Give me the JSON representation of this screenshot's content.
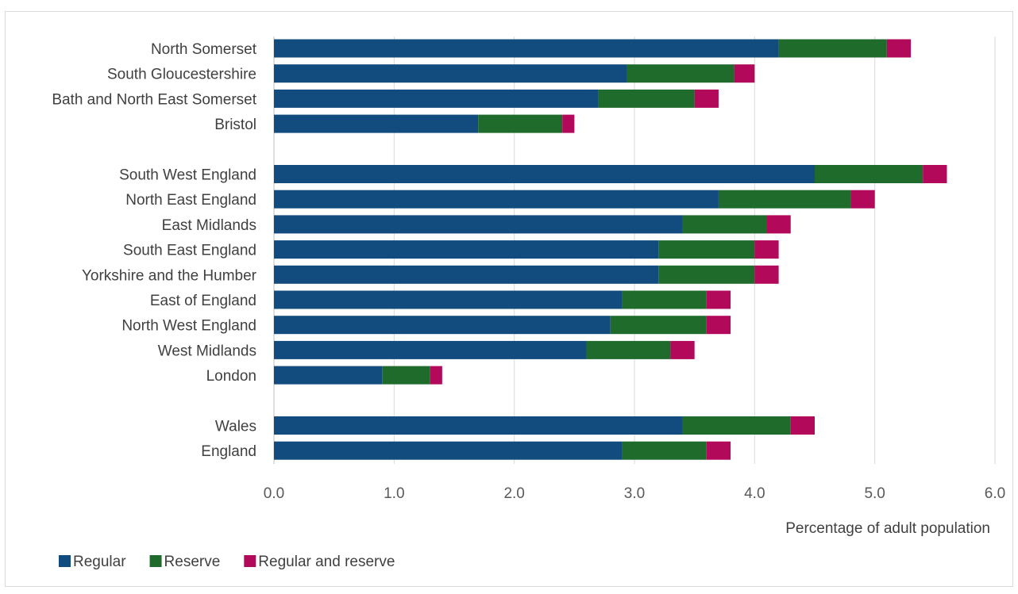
{
  "chart_data": {
    "type": "bar",
    "orientation": "horizontal",
    "stacked": true,
    "title": "",
    "xlabel": "Percentage of adult population",
    "ylabel": "",
    "xlim": [
      0,
      6
    ],
    "x_ticks": [
      "0.0",
      "1.0",
      "2.0",
      "3.0",
      "4.0",
      "5.0",
      "6.0"
    ],
    "grid": true,
    "legend_position": "bottom-left",
    "groups": [
      [
        "North Somerset",
        "South Gloucestershire",
        "Bath and North East Somerset",
        "Bristol"
      ],
      [
        "South West England",
        "North East England",
        "East Midlands",
        "South East England",
        "Yorkshire and the Humber",
        "East of England",
        "North West England",
        "West Midlands",
        "London"
      ],
      [
        "Wales",
        "England"
      ]
    ],
    "categories": [
      "North Somerset",
      "South Gloucestershire",
      "Bath and North East Somerset",
      "Bristol",
      "South West England",
      "North East England",
      "East Midlands",
      "South East England",
      "Yorkshire and the Humber",
      "East of England",
      "North West England",
      "West Midlands",
      "London",
      "Wales",
      "England"
    ],
    "series": [
      {
        "name": "Regular",
        "color": "#124b7e",
        "values": [
          4.2,
          2.94,
          2.7,
          1.7,
          4.5,
          3.7,
          3.4,
          3.2,
          3.2,
          2.9,
          2.8,
          2.6,
          0.9,
          3.4,
          2.9
        ]
      },
      {
        "name": "Reserve",
        "color": "#1e6b2c",
        "values": [
          0.9,
          0.89,
          0.8,
          0.7,
          0.9,
          1.1,
          0.7,
          0.8,
          0.8,
          0.7,
          0.8,
          0.7,
          0.4,
          0.9,
          0.7
        ]
      },
      {
        "name": "Regular and reserve",
        "color": "#b2095a",
        "values": [
          0.2,
          0.17,
          0.2,
          0.1,
          0.2,
          0.2,
          0.2,
          0.2,
          0.2,
          0.2,
          0.2,
          0.2,
          0.1,
          0.2,
          0.2
        ]
      }
    ]
  }
}
